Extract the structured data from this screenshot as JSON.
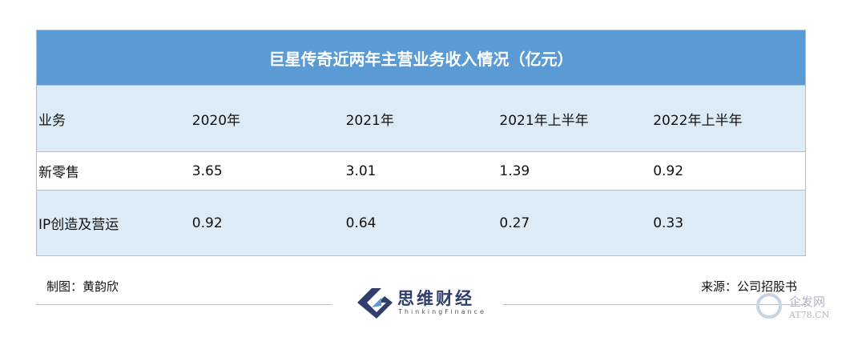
{
  "header": {
    "title": "巨星传奇近两年主营业务收入情况（亿元）"
  },
  "table": {
    "columns": [
      "业务",
      "2020年",
      "2021年",
      "2021年上半年",
      "2022年上半年"
    ],
    "rows": [
      [
        "新零售",
        "3.65",
        "3.01",
        "1.39",
        "0.92"
      ],
      [
        "IP创造及营运",
        "0.92",
        "0.64",
        "0.27",
        "0.33"
      ]
    ]
  },
  "footer": {
    "author": "制图：黄韵欣",
    "source": "来源：公司招股书",
    "logo": {
      "name": "思维财经",
      "subtitle": "ThinkingFinance"
    }
  },
  "watermark": {
    "name": "企发网",
    "url": "AT78.CN"
  }
}
